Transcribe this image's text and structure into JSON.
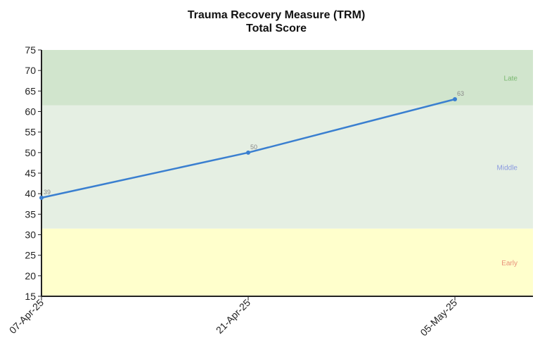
{
  "chart_data": {
    "type": "line",
    "title": "Trauma Recovery Measure (TRM)",
    "subtitle": "Total Score",
    "xlabel": "",
    "ylabel": "",
    "ylim": [
      15,
      75
    ],
    "yticks": [
      15,
      20,
      25,
      30,
      35,
      40,
      45,
      50,
      55,
      60,
      65,
      70,
      75
    ],
    "categories": [
      "07-Apr-25",
      "21-Apr-25",
      "05-May-25"
    ],
    "series": [
      {
        "values": [
          39,
          50,
          63
        ],
        "color": "#3a7fd0"
      }
    ],
    "data_labels": [
      "39",
      "50",
      "63"
    ],
    "bands": [
      {
        "label": "Early",
        "from": 15,
        "to": 31.5,
        "color": "#ffffcc",
        "label_color": "#e8907a"
      },
      {
        "label": "Middle",
        "from": 31.5,
        "to": 61.5,
        "color": "#e5efe3",
        "label_color": "#8a9ae0"
      },
      {
        "label": "Late",
        "from": 61.5,
        "to": 75,
        "color": "#d1e5cd",
        "label_color": "#7ab870"
      }
    ],
    "grid": false,
    "legend": "none"
  }
}
